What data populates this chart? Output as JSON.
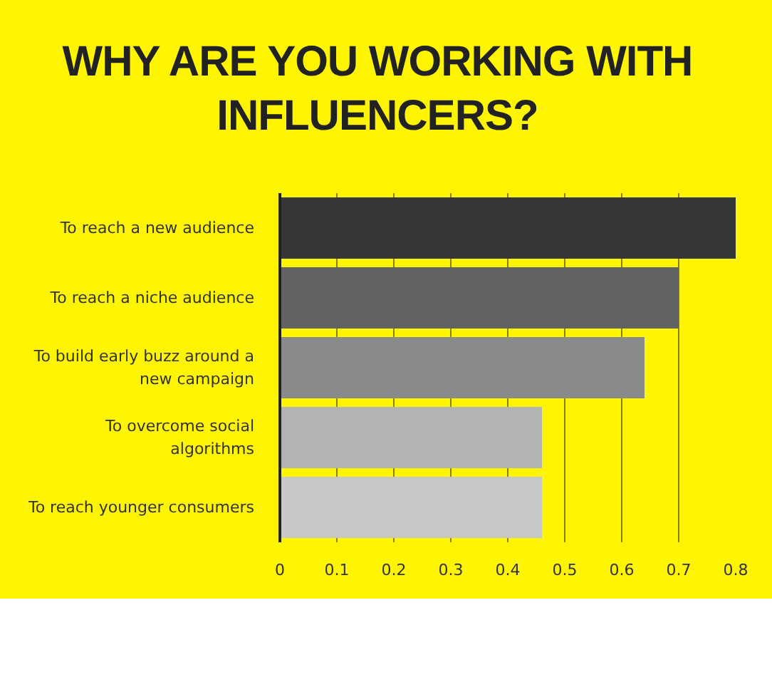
{
  "chart_data": {
    "type": "bar",
    "orientation": "horizontal",
    "title": "WHY ARE YOU WORKING WITH INFLUENCERS?",
    "categories": [
      "To reach a new audience",
      "To reach a niche audience",
      "To build early buzz around a new campaign",
      "To overcome social algorithms",
      "To reach younger consumers"
    ],
    "values": [
      0.8,
      0.7,
      0.64,
      0.46,
      0.46
    ],
    "colors": [
      "#363636",
      "#636363",
      "#8a8a8a",
      "#b3b3b3",
      "#c8c8c8"
    ],
    "xlim": [
      0,
      0.8
    ],
    "xticks": [
      0,
      0.1,
      0.2,
      0.3,
      0.4,
      0.5,
      0.6,
      0.7,
      0.8
    ],
    "grid": "x"
  }
}
